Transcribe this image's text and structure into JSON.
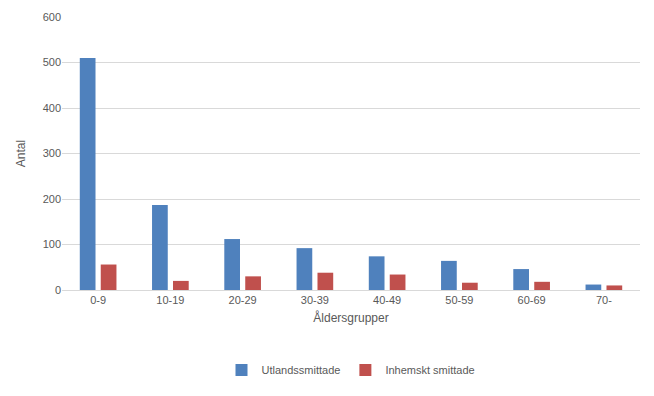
{
  "chart_data": {
    "type": "bar",
    "x_label": "Åldersgrupper",
    "y_label": "Antal",
    "categories": [
      "0-9",
      "10-19",
      "20-29",
      "30-39",
      "40-49",
      "50-59",
      "60-69",
      "70-"
    ],
    "series": [
      {
        "name": "Utlandssmittade",
        "color": "#4f81bd",
        "values": [
          510,
          187,
          112,
          92,
          74,
          64,
          46,
          12
        ]
      },
      {
        "name": "Inhemskt smittade",
        "color": "#c0504d",
        "values": [
          56,
          20,
          30,
          38,
          34,
          16,
          18,
          10
        ]
      }
    ],
    "ylim": [
      0,
      600
    ],
    "yticks": [
      0,
      100,
      200,
      300,
      400,
      500,
      600
    ],
    "grid": true,
    "legend": "bottom"
  }
}
